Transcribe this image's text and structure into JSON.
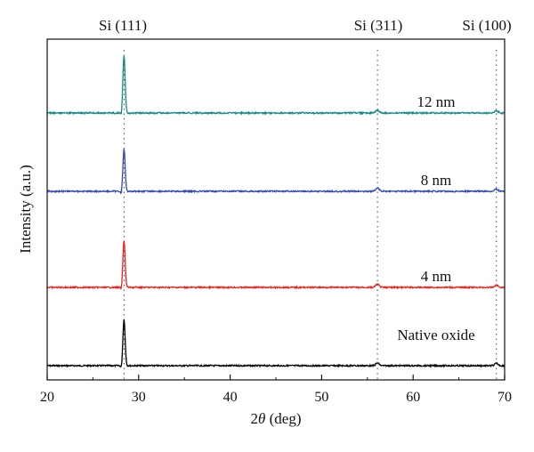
{
  "chart_data": {
    "type": "line",
    "xlabel_prefix": "2",
    "xlabel_symbol": "θ",
    "xlabel_suffix": " (deg)",
    "ylabel": "Intensity (a.u.)",
    "xlim": [
      20,
      70
    ],
    "x_ticks": [
      "20",
      "30",
      "40",
      "50",
      "60",
      "70"
    ],
    "grid": false,
    "legend": "none",
    "peaks": [
      {
        "label": "Si (111)",
        "x": 28.4
      },
      {
        "label": "Si (311)",
        "x": 56.1
      },
      {
        "label": "Si (100)",
        "x": 69.1
      }
    ],
    "series": [
      {
        "name": "Native oxide",
        "color": "#000000",
        "peaks": [
          {
            "x": 28.4,
            "height": 1.0
          },
          {
            "x": 56.1,
            "height": 0.06
          },
          {
            "x": 69.1,
            "height": 0.05
          }
        ]
      },
      {
        "name": "4 nm",
        "color": "#e8231d",
        "peaks": [
          {
            "x": 28.4,
            "height": 1.02
          },
          {
            "x": 56.1,
            "height": 0.07
          },
          {
            "x": 69.1,
            "height": 0.05
          }
        ]
      },
      {
        "name": "8 nm",
        "color": "#2f49b8",
        "peaks": [
          {
            "x": 28.4,
            "height": 0.91
          },
          {
            "x": 56.1,
            "height": 0.07
          },
          {
            "x": 69.1,
            "height": 0.05
          }
        ]
      },
      {
        "name": "12 nm",
        "color": "#168a87",
        "peaks": [
          {
            "x": 28.4,
            "height": 1.25
          },
          {
            "x": 56.1,
            "height": 0.06
          },
          {
            "x": 69.1,
            "height": 0.05
          }
        ]
      }
    ]
  }
}
